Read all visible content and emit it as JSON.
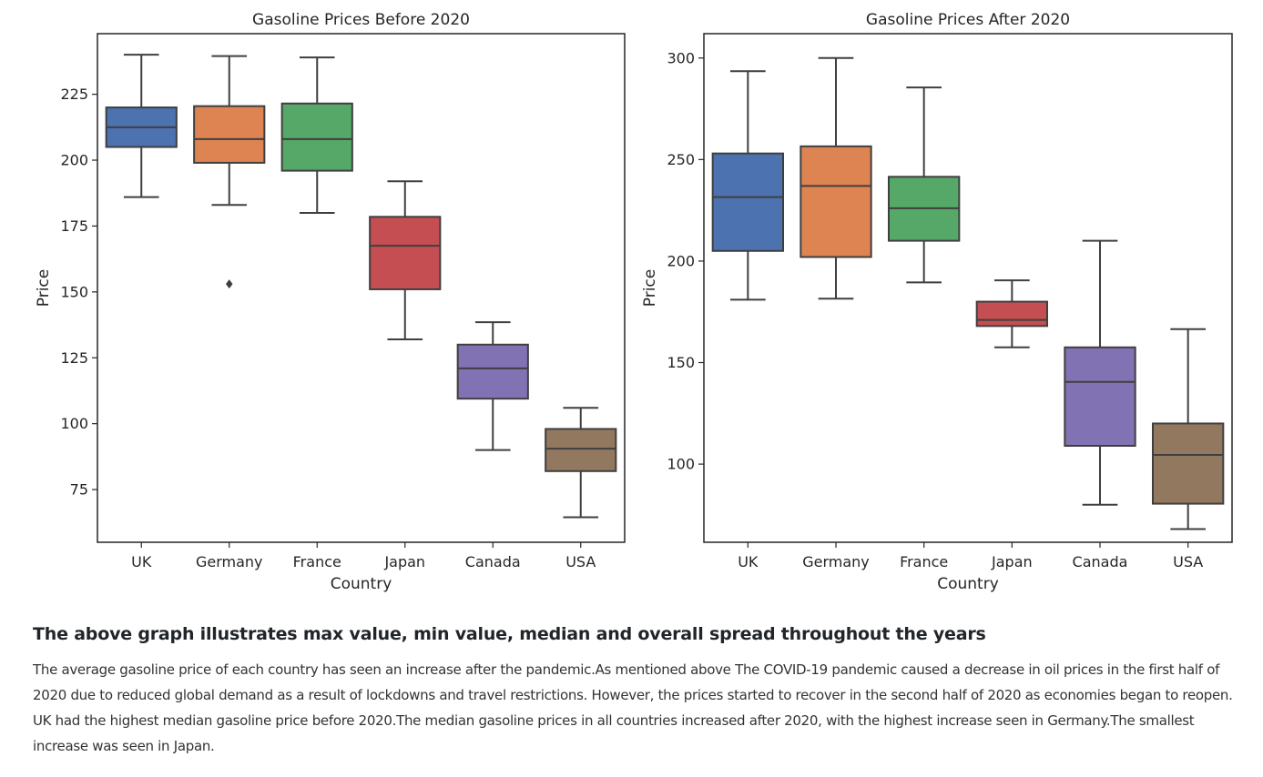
{
  "chart_data": [
    {
      "type": "box",
      "title": "Gasoline Prices Before 2020",
      "xlabel": "Country",
      "ylabel": "Price",
      "categories": [
        "UK",
        "Germany",
        "France",
        "Japan",
        "Canada",
        "USA"
      ],
      "colors": [
        "#4c72b0",
        "#dd8452",
        "#55a868",
        "#c44e52",
        "#8172b3",
        "#937860"
      ],
      "ylim": [
        55,
        248
      ],
      "yticks": [
        75,
        100,
        125,
        150,
        175,
        200,
        225
      ],
      "boxes": [
        {
          "category": "UK",
          "min": 186,
          "q1": 205,
          "median": 212.5,
          "q3": 220,
          "max": 240,
          "outliers": []
        },
        {
          "category": "Germany",
          "min": 183,
          "q1": 199,
          "median": 208,
          "q3": 220.5,
          "max": 239.5,
          "outliers": [
            153
          ]
        },
        {
          "category": "France",
          "min": 180,
          "q1": 196,
          "median": 208,
          "q3": 221.5,
          "max": 239,
          "outliers": []
        },
        {
          "category": "Japan",
          "min": 132,
          "q1": 151,
          "median": 167.5,
          "q3": 178.5,
          "max": 192,
          "outliers": []
        },
        {
          "category": "Canada",
          "min": 90,
          "q1": 109.5,
          "median": 121,
          "q3": 130,
          "max": 138.5,
          "outliers": []
        },
        {
          "category": "USA",
          "min": 64.5,
          "q1": 82,
          "median": 90.5,
          "q3": 98,
          "max": 106,
          "outliers": []
        }
      ]
    },
    {
      "type": "box",
      "title": "Gasoline Prices After 2020",
      "xlabel": "Country",
      "ylabel": "Price",
      "categories": [
        "UK",
        "Germany",
        "France",
        "Japan",
        "Canada",
        "USA"
      ],
      "colors": [
        "#4c72b0",
        "#dd8452",
        "#55a868",
        "#c44e52",
        "#8172b3",
        "#937860"
      ],
      "ylim": [
        61.5,
        312
      ],
      "yticks": [
        100,
        150,
        200,
        250,
        300
      ],
      "boxes": [
        {
          "category": "UK",
          "min": 181,
          "q1": 205,
          "median": 231.5,
          "q3": 253,
          "max": 293.5,
          "outliers": []
        },
        {
          "category": "Germany",
          "min": 181.5,
          "q1": 202,
          "median": 237,
          "q3": 256.5,
          "max": 300,
          "outliers": []
        },
        {
          "category": "France",
          "min": 189.5,
          "q1": 210,
          "median": 226,
          "q3": 241.5,
          "max": 285.5,
          "outliers": []
        },
        {
          "category": "Japan",
          "min": 157.5,
          "q1": 168,
          "median": 171,
          "q3": 180,
          "max": 190.5,
          "outliers": []
        },
        {
          "category": "Canada",
          "min": 80,
          "q1": 109,
          "median": 140.5,
          "q3": 157.5,
          "max": 210,
          "outliers": []
        },
        {
          "category": "USA",
          "min": 68,
          "q1": 80.5,
          "median": 104.5,
          "q3": 120,
          "max": 166.5,
          "outliers": []
        }
      ]
    }
  ],
  "article": {
    "heading": "The above graph illustrates max value, min value, median and overall spread throughout the years",
    "body": "The average gasoline price of each country has seen an increase after the pandemic.As mentioned above The COVID-19 pandemic caused a decrease in oil prices in the first half of 2020 due to reduced global demand as a result of lockdowns and travel restrictions. However, the prices started to recover in the second half of 2020 as economies began to reopen. UK had the highest median gasoline price before 2020.The median gasoline prices in all countries increased after 2020, with the highest increase seen in Germany.The smallest increase was seen in Japan."
  }
}
